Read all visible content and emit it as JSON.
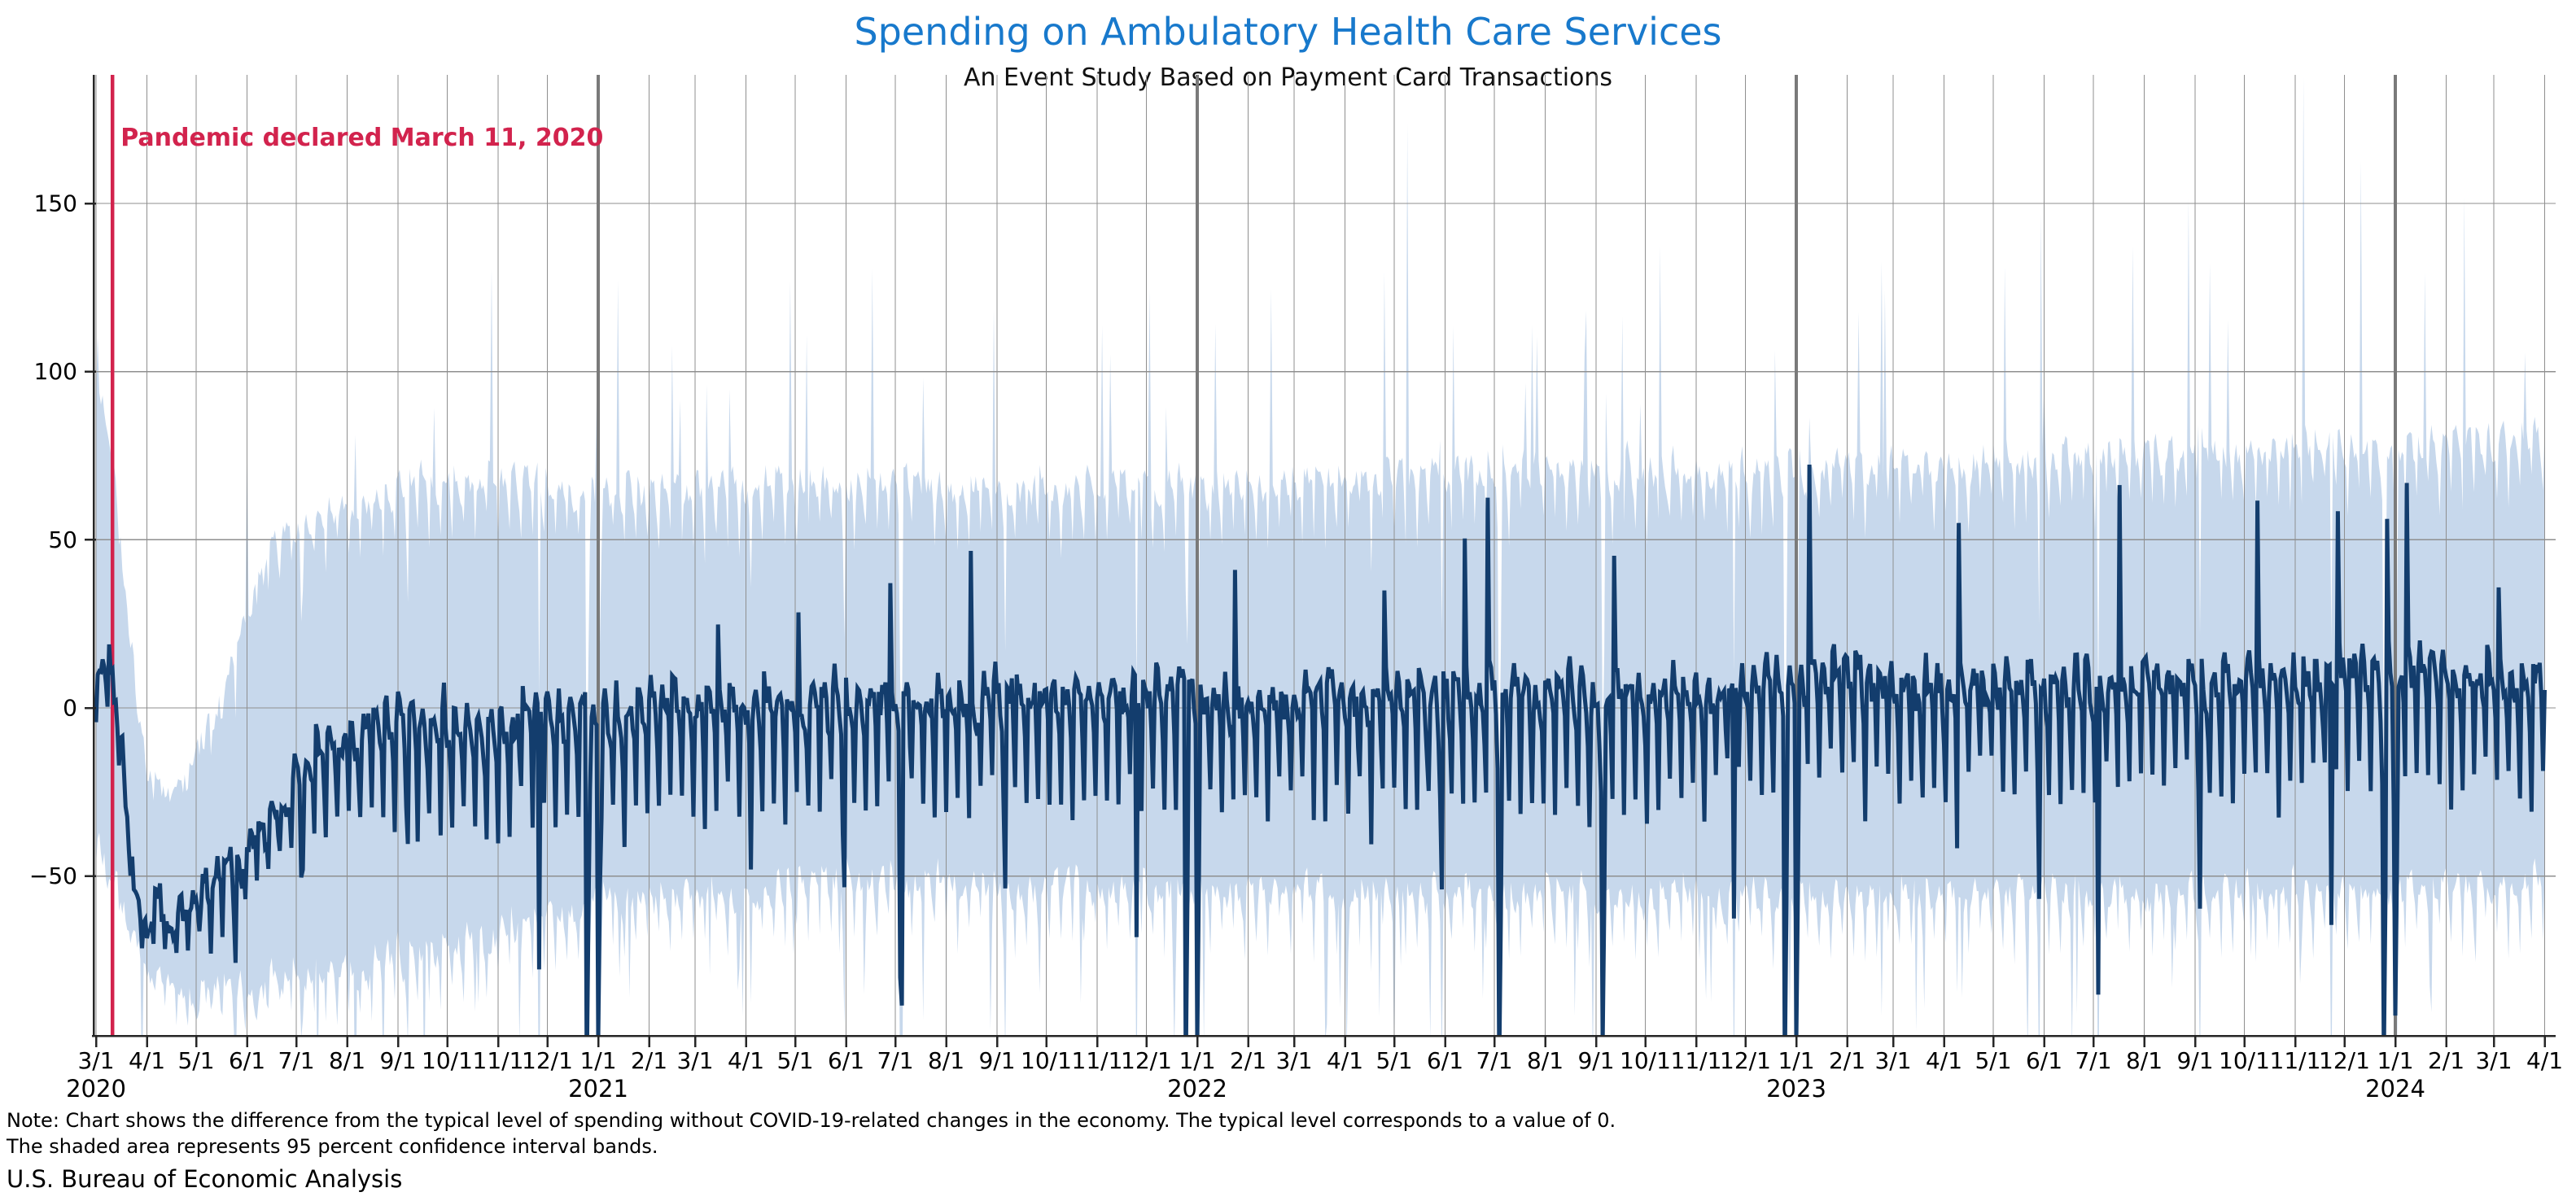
{
  "title": "Spending on Ambulatory Health Care Services",
  "subtitle": "An Event Study Based on Payment Card Transactions",
  "annotation": {
    "text": "Pandemic declared March 11, 2020",
    "date": "2020-03-11"
  },
  "notes": {
    "line1": "Note: Chart shows the difference from the typical level of spending without COVID-19-related changes in the economy. The typical level corresponds to a value of 0.",
    "line2": "The shaded area represents 95 percent confidence interval bands."
  },
  "source": "U.S. Bureau of Economic Analysis",
  "colors": {
    "title_blue": "#1879cc",
    "line": "#133d6d",
    "band": "#c7d8ec",
    "red": "#d2234d",
    "grid": "#8f8f8f",
    "year_grid": "#7a7a7a",
    "spine": "#262626",
    "text": "#000000"
  },
  "chart_data": {
    "type": "line",
    "title": "Spending on Ambulatory Health Care Services",
    "subtitle": "An Event Study Based on Payment Card Transactions",
    "xlabel": "",
    "ylabel": "",
    "x_range": [
      "2020-03-01",
      "2024-04-01"
    ],
    "x_tick_rule": "first day of every month, labeled M/1",
    "ylim": [
      -98,
      188
    ],
    "grid": true,
    "legend": "none",
    "y_ticks": [
      {
        "value": -50,
        "label": "−50"
      },
      {
        "value": 0,
        "label": "0"
      },
      {
        "value": 50,
        "label": "50"
      },
      {
        "value": 100,
        "label": "100"
      },
      {
        "value": 150,
        "label": "150"
      }
    ],
    "year_labels": [
      {
        "text": "2020",
        "date": "2020-03-01"
      },
      {
        "text": "2021",
        "date": "2021-01-01"
      },
      {
        "text": "2022",
        "date": "2022-01-01"
      },
      {
        "text": "2023",
        "date": "2023-01-01"
      },
      {
        "text": "2024",
        "date": "2024-01-01"
      }
    ],
    "event_line": {
      "date": "2020-03-11",
      "label": "Pandemic declared March 11, 2020"
    },
    "series": [
      {
        "name": "Difference from typical spending level (daily)",
        "color_key": "line"
      }
    ],
    "band": {
      "name": "95 percent confidence interval",
      "color_key": "band"
    },
    "model": {
      "description": "Daily series estimated from the chart: value = trend anchor + day-of-week effect + noise; holidays override with deep dips (clipped below ylim); band edges interpolated between anchors with spiky jitter.",
      "center_anchors": [
        [
          "2020-03-01",
          8
        ],
        [
          "2020-03-06",
          14
        ],
        [
          "2020-03-10",
          12
        ],
        [
          "2020-03-13",
          2
        ],
        [
          "2020-03-17",
          -18
        ],
        [
          "2020-03-21",
          -42
        ],
        [
          "2020-03-26",
          -56
        ],
        [
          "2020-04-01",
          -60
        ],
        [
          "2020-04-15",
          -63
        ],
        [
          "2020-04-30",
          -58
        ],
        [
          "2020-05-15",
          -51
        ],
        [
          "2020-05-31",
          -44
        ],
        [
          "2020-06-15",
          -33
        ],
        [
          "2020-06-30",
          -24
        ],
        [
          "2020-07-15",
          -13
        ],
        [
          "2020-08-01",
          -8
        ],
        [
          "2020-09-01",
          -6
        ],
        [
          "2020-10-01",
          -5
        ],
        [
          "2020-11-01",
          -4
        ],
        [
          "2020-12-01",
          -2
        ],
        [
          "2021-01-10",
          -1
        ],
        [
          "2021-04-01",
          0
        ],
        [
          "2021-12-01",
          3
        ],
        [
          "2022-01-20",
          1
        ],
        [
          "2022-12-01",
          4
        ],
        [
          "2023-01-15",
          9
        ],
        [
          "2023-03-01",
          5
        ],
        [
          "2023-07-01",
          5
        ],
        [
          "2023-11-01",
          7
        ],
        [
          "2024-01-10",
          11
        ],
        [
          "2024-02-15",
          7
        ],
        [
          "2024-04-01",
          4
        ]
      ],
      "upper_band_anchors": [
        [
          "2020-03-01",
          98
        ],
        [
          "2020-03-08",
          88
        ],
        [
          "2020-03-15",
          55
        ],
        [
          "2020-03-22",
          18
        ],
        [
          "2020-04-01",
          -18
        ],
        [
          "2020-04-15",
          -25
        ],
        [
          "2020-05-01",
          -15
        ],
        [
          "2020-05-15",
          0
        ],
        [
          "2020-06-01",
          28
        ],
        [
          "2020-06-15",
          45
        ],
        [
          "2020-07-01",
          52
        ],
        [
          "2020-08-01",
          60
        ],
        [
          "2020-09-01",
          66
        ],
        [
          "2020-11-01",
          68
        ],
        [
          "2021-01-01",
          62
        ],
        [
          "2021-06-01",
          66
        ],
        [
          "2022-01-01",
          64
        ],
        [
          "2022-07-01",
          70
        ],
        [
          "2023-01-01",
          70
        ],
        [
          "2023-07-01",
          74
        ],
        [
          "2024-01-01",
          77
        ],
        [
          "2024-04-01",
          80
        ]
      ],
      "lower_band_anchors": [
        [
          "2020-03-01",
          -40
        ],
        [
          "2020-03-15",
          -52
        ],
        [
          "2020-04-01",
          -80
        ],
        [
          "2020-04-20",
          -88
        ],
        [
          "2020-05-15",
          -84
        ],
        [
          "2020-06-15",
          -82
        ],
        [
          "2020-08-01",
          -78
        ],
        [
          "2020-10-01",
          -72
        ],
        [
          "2021-01-01",
          -58
        ],
        [
          "2021-06-01",
          -52
        ],
        [
          "2022-01-01",
          -55
        ],
        [
          "2023-01-01",
          -57
        ],
        [
          "2024-01-01",
          -55
        ],
        [
          "2024-04-01",
          -53
        ]
      ],
      "weekly_ramp": [
        [
          "2020-03-01",
          0.45
        ],
        [
          "2020-03-20",
          0.3
        ],
        [
          "2020-05-01",
          0.4
        ],
        [
          "2020-07-01",
          0.8
        ],
        [
          "2020-09-01",
          1
        ],
        [
          "2024-04-01",
          1
        ]
      ],
      "dow_offsets": {
        "sun": -24,
        "mon": 3,
        "tue": 5,
        "wed": 3,
        "thu": 1,
        "fri": -1,
        "sat": -8
      },
      "holiday_dips": {
        "2020-04-12": -72,
        "2020-05-25": -78,
        "2020-07-04": -52,
        "2020-09-07": -40,
        "2020-11-26": -76,
        "2020-12-25": -112,
        "2021-01-01": -100,
        "2021-04-04": -46,
        "2021-05-31": -52,
        "2021-07-04": -82,
        "2021-07-05": -88,
        "2021-09-06": -56,
        "2021-11-25": -66,
        "2021-12-25": -108,
        "2022-01-01": -98,
        "2022-04-17": -42,
        "2022-05-30": -56,
        "2022-07-04": -108,
        "2022-09-05": -102,
        "2022-11-24": -62,
        "2022-12-25": -106,
        "2023-01-01": -98,
        "2023-04-09": -42,
        "2023-05-29": -58,
        "2023-07-04": -84,
        "2023-09-04": -58,
        "2023-11-23": -64,
        "2023-12-25": -103,
        "2024-01-01": -93
      },
      "positive_spikes": {
        "2021-03-15": 25,
        "2021-05-03": 28,
        "2021-06-28": 36,
        "2021-08-16": 45,
        "2022-01-24": 40,
        "2022-04-25": 33,
        "2022-06-13": 48,
        "2022-06-27": 60,
        "2022-09-12": 42,
        "2023-01-09": 64,
        "2023-04-10": 50,
        "2023-07-17": 61,
        "2023-10-09": 55,
        "2023-11-27": 50,
        "2023-12-27": 46,
        "2024-01-08": 56,
        "2024-03-04": 30
      },
      "ci_upper_spikes": {
        "2020-03-02": 12,
        "2021-02-15": 38,
        "2021-08-30": 55,
        "2022-04-25": 62,
        "2022-05-09": 104,
        "2022-10-10": 64,
        "2023-05-08": 58,
        "2023-08-28": 78,
        "2023-11-06": 108,
        "2023-12-11": 88,
        "2024-02-12": 72
      },
      "echo": {
        "threshold": -90,
        "factor": 0.55
      },
      "noise": {
        "ar_line": 9,
        "white_line": 7,
        "ar_band": 10,
        "up_spike_p": 0.032,
        "dn_spike_p": 0.03,
        "seed": 1337
      }
    }
  }
}
